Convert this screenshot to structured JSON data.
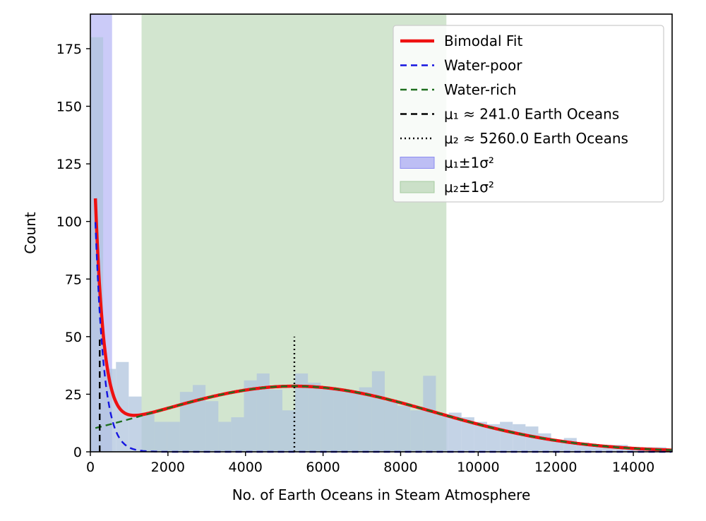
{
  "chart_data": {
    "type": "histogram",
    "xlabel": "No. of Earth Oceans in Steam Atmosphere",
    "ylabel": "Count",
    "xlim": [
      0,
      15000
    ],
    "ylim": [
      0,
      190
    ],
    "xticks": [
      0,
      2000,
      4000,
      6000,
      8000,
      10000,
      12000,
      14000
    ],
    "yticks": [
      0,
      25,
      50,
      75,
      100,
      125,
      150,
      175
    ],
    "grid": false,
    "legend_position": "top-right",
    "histogram": {
      "color": "#b0c4de",
      "bin_width": 330,
      "bin_start": 0,
      "counts": [
        180,
        36,
        39,
        24,
        17,
        13,
        13,
        26,
        29,
        22,
        13,
        15,
        31,
        34,
        27,
        18,
        34,
        30,
        28,
        27,
        26,
        28,
        35,
        22,
        20,
        18,
        33,
        16,
        17,
        15,
        13,
        12,
        13,
        12,
        11,
        8,
        5,
        6,
        4,
        3,
        3,
        3,
        2,
        2,
        2,
        1
      ]
    },
    "fit_components": {
      "water_poor": {
        "amplitude": 180,
        "center": 0,
        "scale": 220
      },
      "water_rich": {
        "amplitude": 28.5,
        "mean": 5260,
        "sigma": 3600
      }
    },
    "vertical_lines": [
      {
        "x": 241.0,
        "y_max": 50,
        "style": "dashed",
        "color": "#000000"
      },
      {
        "x": 5260.0,
        "y_max": 50,
        "style": "dotted",
        "color": "#000000"
      }
    ],
    "bands": [
      {
        "x0": 0,
        "x1": 560,
        "color": "#8c8cf0",
        "opacity": 0.45
      },
      {
        "x0": 1320,
        "x1": 9180,
        "color": "#a6cba0",
        "opacity": 0.5
      }
    ],
    "series": [
      {
        "name": "Bimodal Fit",
        "color": "#ee1111",
        "style": "solid"
      },
      {
        "name": "Water-poor",
        "color": "#1515e0",
        "style": "dashed"
      },
      {
        "name": "Water-rich",
        "color": "#1f6f1f",
        "style": "dashed"
      }
    ],
    "legend": [
      {
        "label": "Bimodal Fit",
        "kind": "line",
        "color": "#ee1111",
        "dash": ""
      },
      {
        "label": "Water-poor",
        "kind": "line",
        "color": "#1515e0",
        "dash": "9,6"
      },
      {
        "label": "Water-rich",
        "kind": "line",
        "color": "#1f6f1f",
        "dash": "9,6"
      },
      {
        "label": "μ₁ ≈ 241.0 Earth Oceans",
        "kind": "line",
        "color": "#000000",
        "dash": "9,6"
      },
      {
        "label": "μ₂ ≈ 5260.0 Earth Oceans",
        "kind": "line",
        "color": "#000000",
        "dash": "2,4"
      },
      {
        "label": "μ₁±1σ²",
        "kind": "patch",
        "color": "#8c8cf0"
      },
      {
        "label": "μ₂±1σ²",
        "kind": "patch",
        "color": "#a6cba0"
      }
    ]
  }
}
